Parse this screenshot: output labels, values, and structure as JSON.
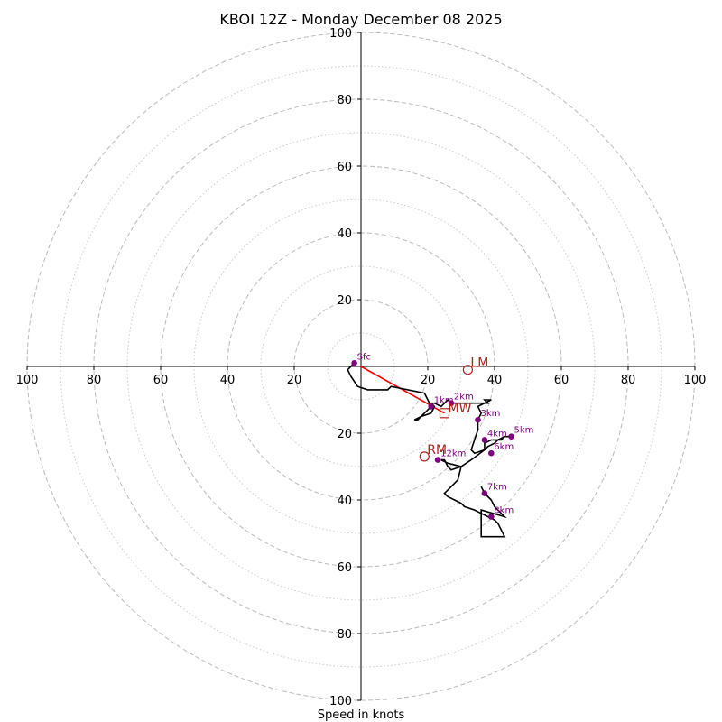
{
  "chart_data": {
    "type": "line",
    "title": "KBOI 12Z - Monday December 08 2025",
    "xlabel": "Speed in knots",
    "ylabel": "",
    "xlim": [
      -100,
      100
    ],
    "ylim": [
      -100,
      100
    ],
    "rings": [
      10,
      20,
      30,
      40,
      50,
      60,
      70,
      80,
      90,
      100
    ],
    "major_rings": [
      20,
      40,
      60,
      80,
      100
    ],
    "x_tick_labels": [
      "100",
      "80",
      "60",
      "40",
      "20",
      "20",
      "40",
      "60",
      "80",
      "100"
    ],
    "y_tick_labels": [
      "100",
      "80",
      "60",
      "40",
      "20",
      "20",
      "40",
      "60",
      "80",
      "100"
    ],
    "grid": true,
    "colors": {
      "trace": "#000000",
      "markers": "#800080",
      "motion": "#b22222",
      "shear_vector": "#ff0000",
      "grid": "#bbbbbb"
    },
    "series": [
      {
        "x": [
          -2,
          -4,
          -3,
          -1,
          2,
          8,
          9,
          19,
          21,
          17,
          16,
          18,
          21,
          22,
          21,
          22,
          24,
          25,
          26,
          27,
          29,
          32,
          35,
          38,
          37,
          39,
          35,
          36,
          35,
          35,
          34,
          33,
          34,
          37,
          38,
          40,
          41,
          43,
          44,
          45,
          43,
          42,
          39,
          37,
          37,
          33,
          30,
          27,
          27,
          26,
          25,
          24,
          26,
          30,
          29,
          26,
          25,
          26,
          28,
          30,
          31,
          34,
          36,
          38,
          40,
          41,
          43,
          38,
          36,
          36,
          43,
          40,
          39,
          37,
          36
        ],
        "y": [
          1,
          -1,
          -3,
          -6,
          -7,
          -7,
          -6,
          -8,
          -12,
          -16,
          -16,
          -15,
          -14,
          -12,
          -11,
          -11,
          -12,
          -11,
          -10,
          -11,
          -11,
          -11,
          -11,
          -11,
          -10,
          -10,
          -12,
          -14,
          -16,
          -19,
          -22,
          -25,
          -26,
          -25,
          -24,
          -23,
          -22,
          -21,
          -21,
          -21,
          -21,
          -22,
          -22,
          -23,
          -25,
          -28,
          -30,
          -31,
          -31,
          -30,
          -28,
          -28,
          -29,
          -30,
          -34,
          -37,
          -38,
          -39,
          -40,
          -41,
          -42,
          -43,
          -44,
          -45,
          -46,
          -47,
          -51,
          -51,
          -51,
          -43,
          -45,
          -42,
          -40,
          -38,
          -36
        ]
      }
    ],
    "height_markers": [
      {
        "label": "Sfc",
        "x": -2,
        "y": 1
      },
      {
        "label": "1km",
        "x": 21,
        "y": -12
      },
      {
        "label": "2km",
        "x": 27,
        "y": -11
      },
      {
        "label": "3km",
        "x": 35,
        "y": -16
      },
      {
        "label": "4km",
        "x": 37,
        "y": -22
      },
      {
        "label": "5km",
        "x": 45,
        "y": -21
      },
      {
        "label": "6km",
        "x": 39,
        "y": -26
      },
      {
        "label": "7km",
        "x": 37,
        "y": -38
      },
      {
        "label": "8km",
        "x": 39,
        "y": -45
      },
      {
        "label": "12km",
        "x": 23,
        "y": -28
      }
    ],
    "storm_motion": {
      "LM": {
        "label": "LM",
        "x": 32,
        "y": -1
      },
      "MW": {
        "label": "MW",
        "x": 25,
        "y": -14
      },
      "RM": {
        "label": "RM",
        "x": 19,
        "y": -27
      }
    },
    "shear_vector": {
      "from": [
        0,
        0
      ],
      "to": [
        25,
        -14
      ]
    }
  }
}
